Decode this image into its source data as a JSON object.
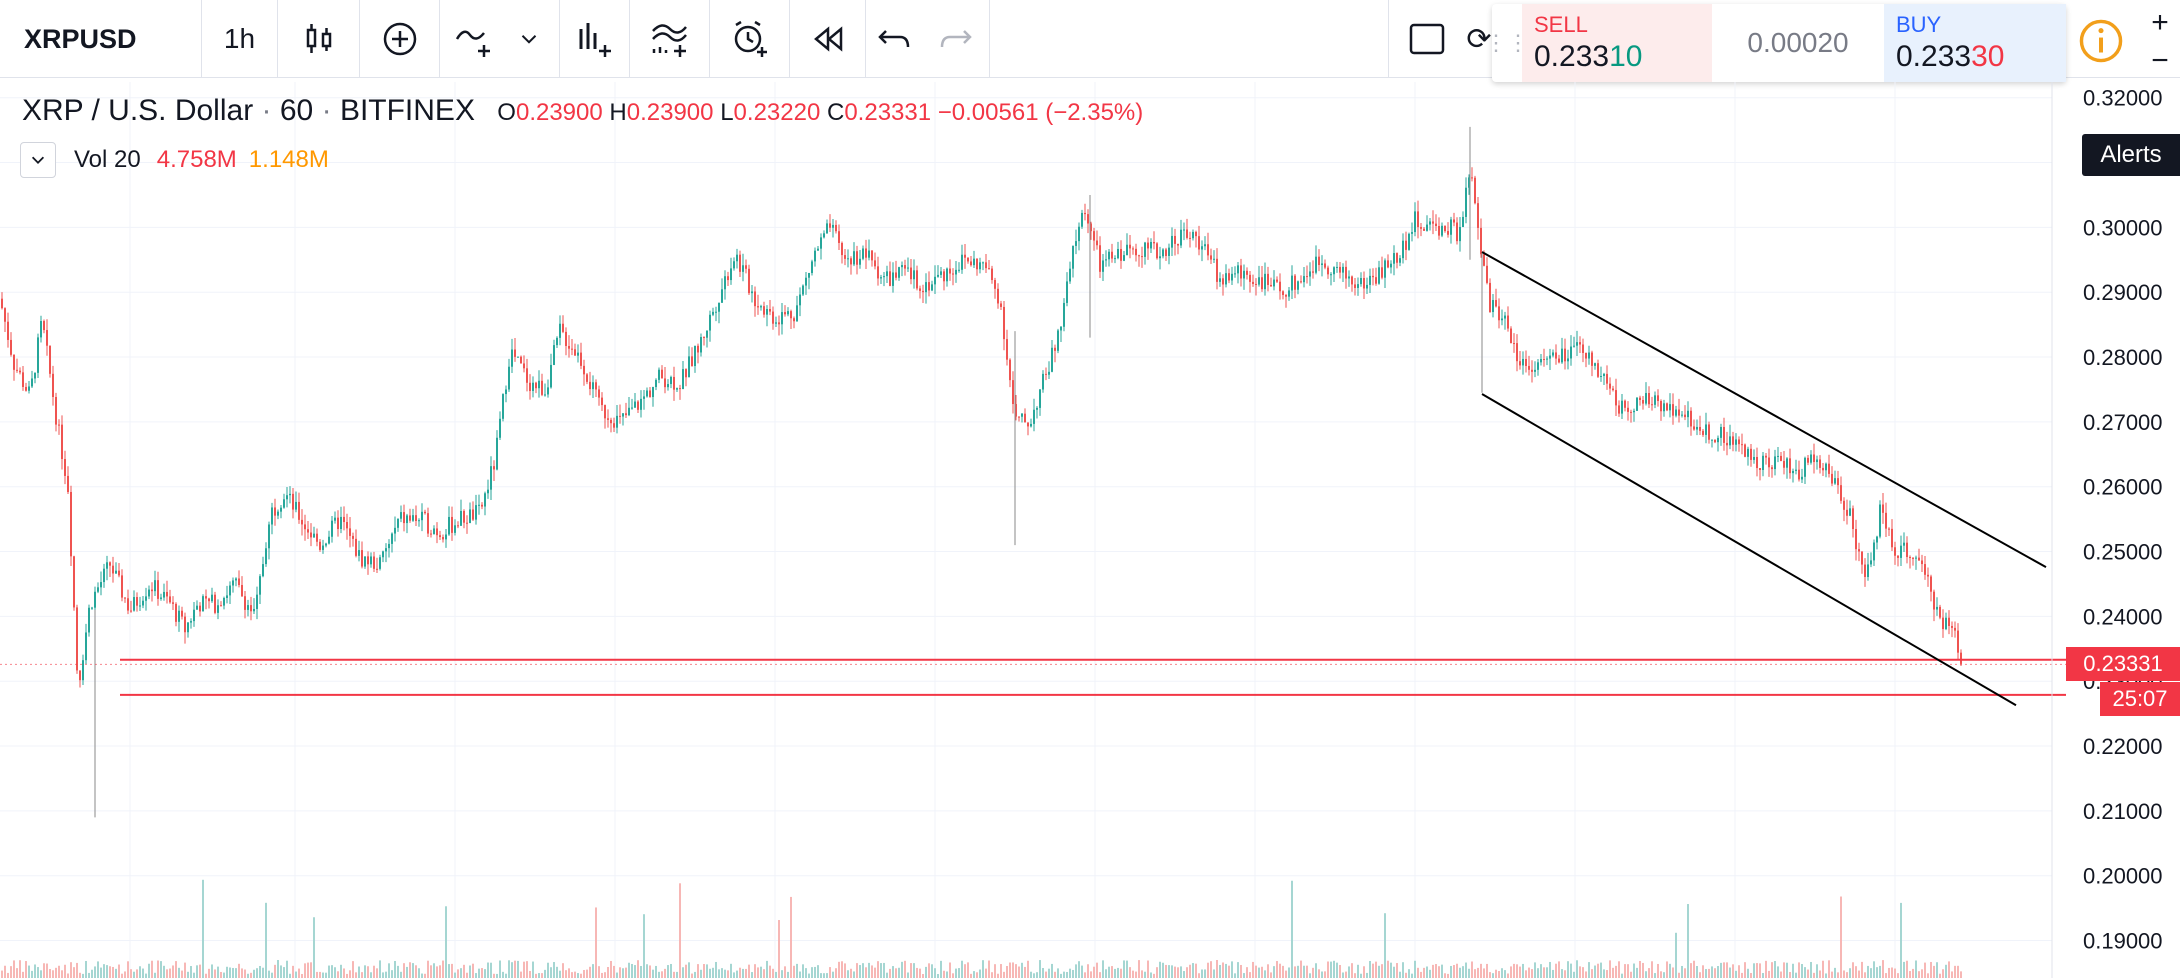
{
  "toolbar": {
    "symbol": "XRPUSD",
    "interval": "1h",
    "icons": [
      "candles-icon",
      "add-indicator-icon",
      "indicators-icon",
      "chevron-down-icon",
      "financials-icon",
      "templates-icon",
      "alert-icon",
      "replay-icon",
      "undo-icon",
      "redo-icon",
      "layout-icon"
    ]
  },
  "trade": {
    "sell_label": "SELL",
    "sell_price_main": "0.233",
    "sell_price_hi": "10",
    "spread": "0.00020",
    "buy_label": "BUY",
    "buy_price_main": "0.233",
    "buy_price_hi": "30"
  },
  "legend": {
    "title": "XRP / U.S. Dollar",
    "sep": "·",
    "interval": "60",
    "exchange": "BITFINEX",
    "o_key": "O",
    "o_val": "0.23900",
    "h_key": "H",
    "h_val": "0.23900",
    "l_key": "L",
    "l_val": "0.23220",
    "c_key": "C",
    "c_val": "0.23331",
    "change": "−0.00561 (−2.35%)",
    "vol_label": "Vol 20",
    "vol_val1": "4.758M",
    "vol_val2": "1.148M"
  },
  "alerts_label": "Alerts",
  "zoom_in": "+",
  "zoom_out": "−",
  "colors": {
    "up": "#26a69a",
    "down": "#ef5350",
    "level": "#f23645",
    "channel": "#000000"
  },
  "chart_data": {
    "type": "candlestick",
    "yaxis": {
      "ticks": [
        "0.32000",
        "0.31000",
        "0.30000",
        "0.29000",
        "0.28000",
        "0.27000",
        "0.26000",
        "0.25000",
        "0.24000",
        "0.23000",
        "0.22000",
        "0.21000",
        "0.20000",
        "0.19000"
      ],
      "ylim": [
        0.187,
        0.3215
      ]
    },
    "last_price": "0.23331",
    "countdown": "25:07",
    "price_path": [
      [
        0,
        0.289
      ],
      [
        14,
        0.279
      ],
      [
        30,
        0.274
      ],
      [
        42,
        0.2855
      ],
      [
        58,
        0.269
      ],
      [
        68,
        0.26
      ],
      [
        78,
        0.229
      ],
      [
        90,
        0.242
      ],
      [
        110,
        0.248
      ],
      [
        130,
        0.241
      ],
      [
        150,
        0.245
      ],
      [
        170,
        0.242
      ],
      [
        185,
        0.238
      ],
      [
        198,
        0.242
      ],
      [
        215,
        0.242
      ],
      [
        235,
        0.245
      ],
      [
        255,
        0.24
      ],
      [
        270,
        0.256
      ],
      [
        285,
        0.259
      ],
      [
        305,
        0.254
      ],
      [
        320,
        0.251
      ],
      [
        340,
        0.255
      ],
      [
        360,
        0.249
      ],
      [
        380,
        0.248
      ],
      [
        400,
        0.255
      ],
      [
        420,
        0.255
      ],
      [
        440,
        0.253
      ],
      [
        460,
        0.255
      ],
      [
        480,
        0.256
      ],
      [
        495,
        0.264
      ],
      [
        510,
        0.281
      ],
      [
        530,
        0.276
      ],
      [
        545,
        0.275
      ],
      [
        560,
        0.284
      ],
      [
        580,
        0.28
      ],
      [
        600,
        0.272
      ],
      [
        620,
        0.27
      ],
      [
        640,
        0.273
      ],
      [
        660,
        0.277
      ],
      [
        680,
        0.276
      ],
      [
        700,
        0.282
      ],
      [
        715,
        0.288
      ],
      [
        735,
        0.296
      ],
      [
        755,
        0.289
      ],
      [
        775,
        0.286
      ],
      [
        795,
        0.287
      ],
      [
        815,
        0.296
      ],
      [
        830,
        0.3
      ],
      [
        845,
        0.295
      ],
      [
        865,
        0.296
      ],
      [
        885,
        0.292
      ],
      [
        905,
        0.293
      ],
      [
        925,
        0.291
      ],
      [
        945,
        0.293
      ],
      [
        965,
        0.295
      ],
      [
        985,
        0.294
      ],
      [
        1000,
        0.289
      ],
      [
        1015,
        0.27
      ],
      [
        1030,
        0.27
      ],
      [
        1045,
        0.277
      ],
      [
        1060,
        0.284
      ],
      [
        1075,
        0.298
      ],
      [
        1085,
        0.303
      ],
      [
        1100,
        0.294
      ],
      [
        1120,
        0.296
      ],
      [
        1140,
        0.297
      ],
      [
        1160,
        0.296
      ],
      [
        1180,
        0.299
      ],
      [
        1200,
        0.298
      ],
      [
        1220,
        0.292
      ],
      [
        1240,
        0.293
      ],
      [
        1260,
        0.292
      ],
      [
        1280,
        0.29
      ],
      [
        1300,
        0.292
      ],
      [
        1320,
        0.295
      ],
      [
        1340,
        0.293
      ],
      [
        1360,
        0.291
      ],
      [
        1380,
        0.293
      ],
      [
        1400,
        0.296
      ],
      [
        1415,
        0.301
      ],
      [
        1430,
        0.3
      ],
      [
        1450,
        0.3
      ],
      [
        1460,
        0.299
      ],
      [
        1470,
        0.309
      ],
      [
        1480,
        0.297
      ],
      [
        1490,
        0.288
      ],
      [
        1505,
        0.286
      ],
      [
        1520,
        0.279
      ],
      [
        1540,
        0.279
      ],
      [
        1560,
        0.28
      ],
      [
        1580,
        0.281
      ],
      [
        1600,
        0.278
      ],
      [
        1620,
        0.272
      ],
      [
        1640,
        0.273
      ],
      [
        1660,
        0.273
      ],
      [
        1680,
        0.272
      ],
      [
        1700,
        0.269
      ],
      [
        1720,
        0.268
      ],
      [
        1740,
        0.266
      ],
      [
        1760,
        0.264
      ],
      [
        1780,
        0.264
      ],
      [
        1800,
        0.262
      ],
      [
        1815,
        0.265
      ],
      [
        1830,
        0.262
      ],
      [
        1850,
        0.256
      ],
      [
        1865,
        0.245
      ],
      [
        1880,
        0.256
      ],
      [
        1895,
        0.25
      ],
      [
        1910,
        0.25
      ],
      [
        1925,
        0.246
      ],
      [
        1940,
        0.24
      ],
      [
        1955,
        0.237
      ],
      [
        1962,
        0.2333
      ]
    ],
    "horizontal_lines": [
      {
        "y": 0.23331,
        "color": "#f23645"
      },
      {
        "y": 0.2326,
        "color": "#f23645",
        "style": "dotted"
      },
      {
        "y": 0.2279,
        "color": "#f23645"
      }
    ],
    "trendlines": [
      {
        "x": [
          1482,
          2046
        ],
        "y": [
          0.2962,
          0.2476
        ]
      },
      {
        "x": [
          1482,
          2016
        ],
        "y": [
          0.2743,
          0.2263
        ]
      }
    ],
    "volume_max_label": ""
  }
}
